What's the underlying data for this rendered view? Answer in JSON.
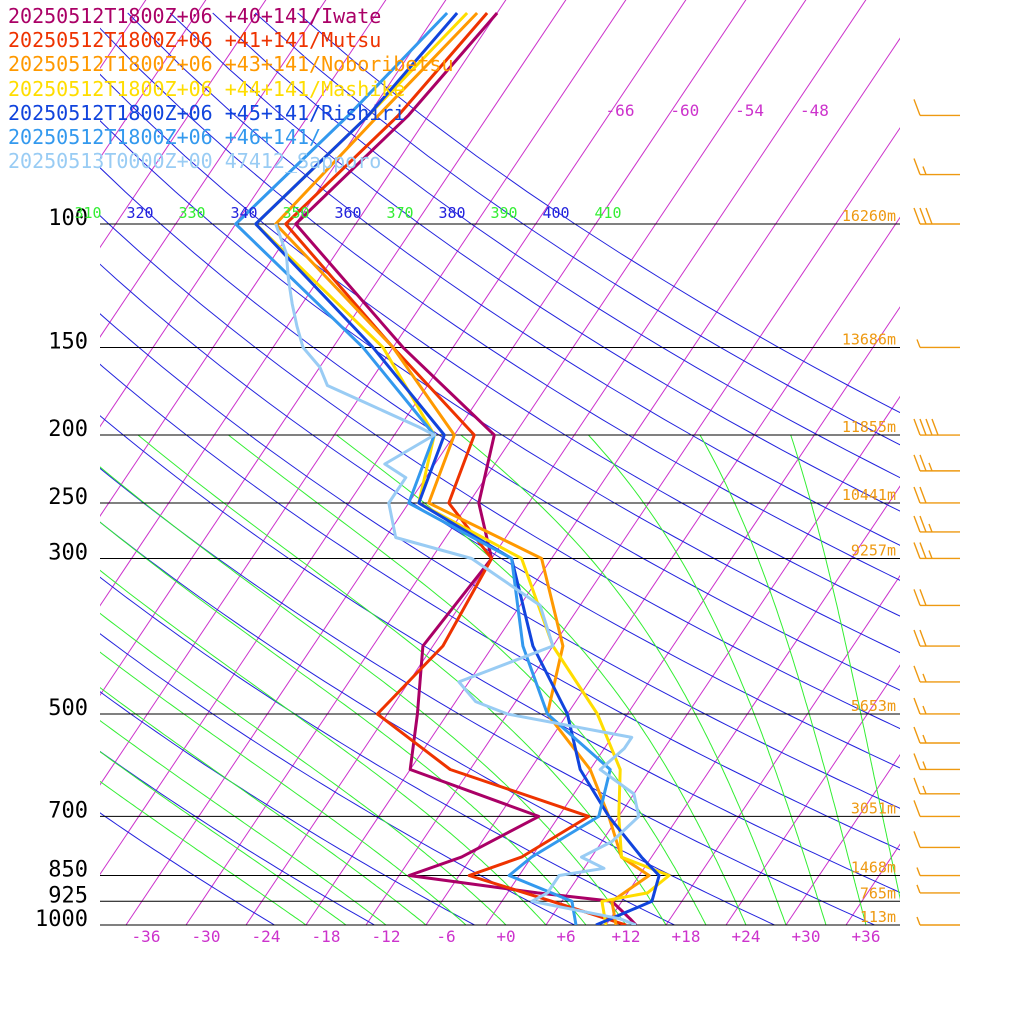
{
  "chart_data": {
    "type": "line",
    "title": "",
    "xlabel": "",
    "ylabel": "",
    "legend_position": "top-left",
    "pressure_levels": [
      {
        "p": 100,
        "label": "100",
        "height": "16260m"
      },
      {
        "p": 150,
        "label": "150",
        "height": "13686m"
      },
      {
        "p": 200,
        "label": "200",
        "height": "11855m"
      },
      {
        "p": 250,
        "label": "250",
        "height": "10441m"
      },
      {
        "p": 300,
        "label": "300",
        "height": "9257m"
      },
      {
        "p": 500,
        "label": "500",
        "height": "5653m"
      },
      {
        "p": 700,
        "label": "700",
        "height": "3051m"
      },
      {
        "p": 850,
        "label": "850",
        "height": "1468m"
      },
      {
        "p": 925,
        "label": "925",
        "height": "765m"
      },
      {
        "p": 1000,
        "label": "1000",
        "height": "113m"
      }
    ],
    "x_ticks": [
      {
        "t": -36,
        "label": "-36"
      },
      {
        "t": -30,
        "label": "-30"
      },
      {
        "t": -24,
        "label": "-24"
      },
      {
        "t": -18,
        "label": "-18"
      },
      {
        "t": -12,
        "label": "-12"
      },
      {
        "t": -6,
        "label": "-6"
      },
      {
        "t": 0,
        "label": "+0"
      },
      {
        "t": 6,
        "label": "+6"
      },
      {
        "t": 12,
        "label": "+12"
      },
      {
        "t": 18,
        "label": "+18"
      },
      {
        "t": 24,
        "label": "+24"
      },
      {
        "t": 30,
        "label": "+30"
      },
      {
        "t": 36,
        "label": "+36"
      }
    ],
    "upper_temp_labels": [
      {
        "t": -66,
        "label": "-66"
      },
      {
        "t": -60,
        "label": "-60"
      },
      {
        "t": -54,
        "label": "-54"
      },
      {
        "t": -48,
        "label": "-48"
      }
    ],
    "theta_labels": [
      {
        "theta": 310,
        "label": "310"
      },
      {
        "theta": 320,
        "label": "320"
      },
      {
        "theta": 330,
        "label": "330"
      },
      {
        "theta": 340,
        "label": "340"
      },
      {
        "theta": 350,
        "label": "350"
      },
      {
        "theta": 360,
        "label": "360"
      },
      {
        "theta": 370,
        "label": "370"
      },
      {
        "theta": 380,
        "label": "380"
      },
      {
        "theta": 390,
        "label": "390"
      },
      {
        "theta": 400,
        "label": "400"
      },
      {
        "theta": 410,
        "label": "410"
      }
    ],
    "series": [
      {
        "name": "20250512T1800Z+06 +40+141/Iwate",
        "color": "#aa0066",
        "points": [
          [
            1000,
            13
          ],
          [
            980,
            12
          ],
          [
            925,
            9
          ],
          [
            900,
            1
          ],
          [
            850,
            -13
          ],
          [
            800,
            -9
          ],
          [
            700,
            -4
          ],
          [
            600,
            -20
          ],
          [
            500,
            -23
          ],
          [
            400,
            -27
          ],
          [
            300,
            -26
          ],
          [
            250,
            -31
          ],
          [
            200,
            -34
          ],
          [
            150,
            -49
          ],
          [
            100,
            -68
          ],
          [
            70,
            -64
          ],
          [
            50,
            -62
          ]
        ]
      },
      {
        "name": "20250512T1800Z+06 +41+141/Mutsu",
        "color": "#ee3300",
        "points": [
          [
            1000,
            12
          ],
          [
            925,
            3
          ],
          [
            850,
            -7
          ],
          [
            800,
            -3
          ],
          [
            700,
            1
          ],
          [
            600,
            -16
          ],
          [
            500,
            -27
          ],
          [
            400,
            -25
          ],
          [
            300,
            -26
          ],
          [
            250,
            -34
          ],
          [
            200,
            -36
          ],
          [
            150,
            -50
          ],
          [
            100,
            -69
          ],
          [
            70,
            -65
          ],
          [
            50,
            -63
          ]
        ]
      },
      {
        "name": "20250512T1800Z+06 +43+141/Noboribetsu",
        "color": "#ff9900",
        "points": [
          [
            1000,
            11
          ],
          [
            925,
            9
          ],
          [
            850,
            11
          ],
          [
            800,
            7
          ],
          [
            700,
            3
          ],
          [
            600,
            -2
          ],
          [
            500,
            -10
          ],
          [
            400,
            -13
          ],
          [
            300,
            -21
          ],
          [
            250,
            -36
          ],
          [
            200,
            -38
          ],
          [
            150,
            -50
          ],
          [
            100,
            -70
          ],
          [
            70,
            -67
          ],
          [
            50,
            -64
          ]
        ]
      },
      {
        "name": "20250512T1800Z+06 +44+141/Mashike",
        "color": "#ffdd00",
        "points": [
          [
            1000,
            10
          ],
          [
            925,
            8
          ],
          [
            900,
            12
          ],
          [
            850,
            13
          ],
          [
            800,
            7
          ],
          [
            700,
            4
          ],
          [
            600,
            1
          ],
          [
            500,
            -5
          ],
          [
            400,
            -14
          ],
          [
            300,
            -23
          ],
          [
            250,
            -37
          ],
          [
            200,
            -40
          ],
          [
            150,
            -51
          ],
          [
            100,
            -72
          ],
          [
            70,
            -68
          ],
          [
            50,
            -65
          ]
        ]
      },
      {
        "name": "20250512T1800Z+06 +45+141/Rishiri",
        "color": "#1144dd",
        "points": [
          [
            1000,
            9
          ],
          [
            925,
            13
          ],
          [
            850,
            12
          ],
          [
            800,
            9
          ],
          [
            700,
            3
          ],
          [
            600,
            -3
          ],
          [
            500,
            -8
          ],
          [
            400,
            -16
          ],
          [
            300,
            -24
          ],
          [
            250,
            -37
          ],
          [
            200,
            -39
          ],
          [
            150,
            -52
          ],
          [
            100,
            -72
          ],
          [
            70,
            -68
          ],
          [
            50,
            -66
          ]
        ]
      },
      {
        "name": "20250512T1800Z+06 +46+141/",
        "color": "#3399ee",
        "points": [
          [
            1000,
            7
          ],
          [
            925,
            5
          ],
          [
            850,
            -3
          ],
          [
            800,
            -2
          ],
          [
            700,
            2
          ],
          [
            600,
            0
          ],
          [
            500,
            -10
          ],
          [
            400,
            -17
          ],
          [
            300,
            -24
          ],
          [
            250,
            -38
          ],
          [
            200,
            -40
          ],
          [
            150,
            -53
          ],
          [
            100,
            -74
          ],
          [
            70,
            -70
          ],
          [
            50,
            -67
          ]
        ]
      },
      {
        "name": "20250513T0000Z+00 47412_Sapporo",
        "color": "#99ccf4",
        "points": [
          [
            1000,
            13
          ],
          [
            980,
            11
          ],
          [
            925,
            1
          ],
          [
            900,
            2
          ],
          [
            850,
            2
          ],
          [
            830,
            6
          ],
          [
            800,
            3
          ],
          [
            760,
            5
          ],
          [
            700,
            6
          ],
          [
            650,
            4
          ],
          [
            600,
            -1
          ],
          [
            560,
            0
          ],
          [
            540,
            0
          ],
          [
            500,
            -14
          ],
          [
            480,
            -18
          ],
          [
            450,
            -21
          ],
          [
            400,
            -14
          ],
          [
            350,
            -18
          ],
          [
            300,
            -28
          ],
          [
            280,
            -37
          ],
          [
            250,
            -40
          ],
          [
            230,
            -40
          ],
          [
            220,
            -43
          ],
          [
            200,
            -40
          ],
          [
            195,
            -42
          ],
          [
            180,
            -49
          ],
          [
            170,
            -54
          ],
          [
            160,
            -56
          ],
          [
            150,
            -59
          ],
          [
            140,
            -61
          ],
          [
            130,
            -63
          ],
          [
            120,
            -65
          ],
          [
            110,
            -67
          ],
          [
            100,
            -70
          ]
        ]
      }
    ],
    "wind_barbs": [
      {
        "p": 70,
        "flags": 0,
        "full": 1,
        "half": 0
      },
      {
        "p": 85,
        "flags": 0,
        "full": 1,
        "half": 1
      },
      {
        "p": 100,
        "flags": 0,
        "full": 3,
        "half": 0
      },
      {
        "p": 150,
        "flags": 0,
        "full": 0,
        "half": 1
      },
      {
        "p": 200,
        "flags": 0,
        "full": 4,
        "half": 0
      },
      {
        "p": 225,
        "flags": 0,
        "full": 2,
        "half": 1
      },
      {
        "p": 250,
        "flags": 0,
        "full": 2,
        "half": 0
      },
      {
        "p": 275,
        "flags": 0,
        "full": 2,
        "half": 1
      },
      {
        "p": 300,
        "flags": 0,
        "full": 2,
        "half": 1
      },
      {
        "p": 350,
        "flags": 0,
        "full": 2,
        "half": 0
      },
      {
        "p": 400,
        "flags": 0,
        "full": 2,
        "half": 0
      },
      {
        "p": 450,
        "flags": 0,
        "full": 1,
        "half": 1
      },
      {
        "p": 500,
        "flags": 0,
        "full": 1,
        "half": 1
      },
      {
        "p": 550,
        "flags": 0,
        "full": 1,
        "half": 1
      },
      {
        "p": 600,
        "flags": 0,
        "full": 1,
        "half": 1
      },
      {
        "p": 650,
        "flags": 0,
        "full": 1,
        "half": 1
      },
      {
        "p": 700,
        "flags": 0,
        "full": 1,
        "half": 0
      },
      {
        "p": 775,
        "flags": 0,
        "full": 1,
        "half": 0
      },
      {
        "p": 850,
        "flags": 0,
        "full": 0,
        "half": 1
      },
      {
        "p": 900,
        "flags": 0,
        "full": 0,
        "half": 1
      },
      {
        "p": 1000,
        "flags": 0,
        "full": 0,
        "half": 1
      }
    ],
    "colors": {
      "isotherm": "#cc33cc",
      "dry_adiabat": "#2222dd",
      "moist_adiabat": "#33ee33",
      "pressure_line": "#000000",
      "height_label": "#ee9911",
      "barb": "#ee9911"
    }
  }
}
